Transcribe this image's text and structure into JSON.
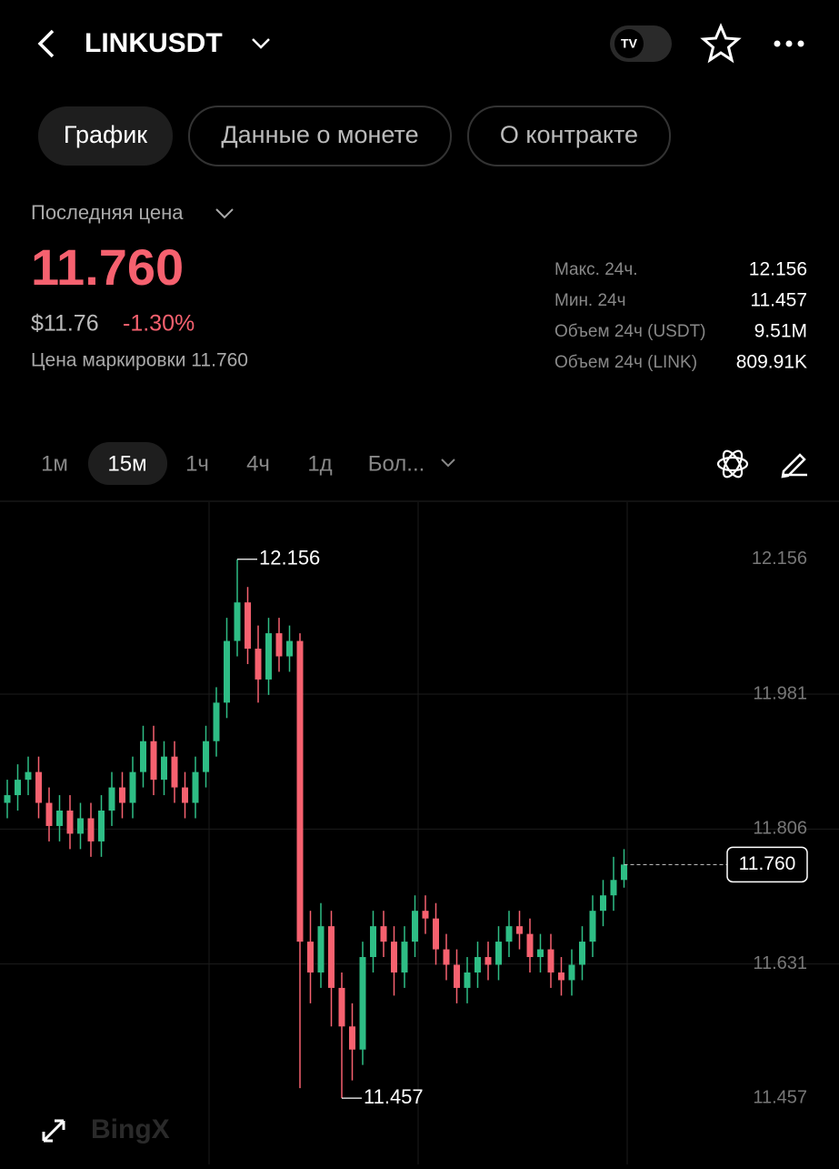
{
  "header": {
    "symbol": "LINKUSDT"
  },
  "tabs": [
    "График",
    "Данные о монете",
    "О контракте"
  ],
  "price": {
    "label": "Последняя цена",
    "last": "11.760",
    "usd": "$11.76",
    "change": "-1.30%",
    "mark": "Цена маркировки 11.760"
  },
  "stats": [
    {
      "label": "Макс. 24ч.",
      "value": "12.156"
    },
    {
      "label": "Мин. 24ч",
      "value": "11.457"
    },
    {
      "label": "Объем 24ч (USDT)",
      "value": "9.51M"
    },
    {
      "label": "Объем 24ч (LINK)",
      "value": "809.91K"
    }
  ],
  "intervals": [
    "1м",
    "15м",
    "1ч",
    "4ч",
    "1д",
    "Бол..."
  ],
  "watermark": "BingX",
  "chart_data": {
    "type": "candlestick",
    "up_color": "#2ebd85",
    "down_color": "#f6616f",
    "grid": true,
    "ylim": [
      11.371,
      12.23
    ],
    "yticks": [
      12.156,
      11.981,
      11.806,
      11.631,
      11.457
    ],
    "open": [
      11.84,
      11.85,
      11.87,
      11.88,
      11.84,
      11.81,
      11.83,
      11.8,
      11.82,
      11.79,
      11.83,
      11.86,
      11.84,
      11.88,
      11.92,
      11.87,
      11.9,
      11.86,
      11.84,
      11.88,
      11.92,
      11.97,
      12.05,
      12.1,
      12.04,
      12.0,
      12.06,
      12.03,
      12.05,
      11.66,
      11.62,
      11.68,
      11.6,
      11.55,
      11.52,
      11.64,
      11.68,
      11.66,
      11.62,
      11.66,
      11.7,
      11.69,
      11.65,
      11.63,
      11.6,
      11.62,
      11.64,
      11.63,
      11.66,
      11.68,
      11.67,
      11.64,
      11.65,
      11.62,
      11.61,
      11.63,
      11.66,
      11.7,
      11.72,
      11.74
    ],
    "high": [
      11.87,
      11.89,
      11.9,
      11.9,
      11.86,
      11.85,
      11.85,
      11.84,
      11.84,
      11.85,
      11.88,
      11.88,
      11.9,
      11.94,
      11.94,
      11.92,
      11.92,
      11.88,
      11.9,
      11.94,
      11.99,
      12.08,
      12.156,
      12.12,
      12.07,
      12.08,
      12.08,
      12.07,
      12.06,
      11.7,
      11.71,
      11.7,
      11.62,
      11.58,
      11.66,
      11.7,
      11.7,
      11.68,
      11.68,
      11.72,
      11.72,
      11.71,
      11.67,
      11.65,
      11.64,
      11.66,
      11.66,
      11.68,
      11.7,
      11.7,
      11.69,
      11.67,
      11.67,
      11.64,
      11.65,
      11.68,
      11.72,
      11.74,
      11.77,
      11.78
    ],
    "low": [
      11.82,
      11.83,
      11.85,
      11.82,
      11.79,
      11.79,
      11.78,
      11.78,
      11.77,
      11.77,
      11.81,
      11.82,
      11.82,
      11.86,
      11.85,
      11.85,
      11.84,
      11.82,
      11.82,
      11.86,
      11.9,
      11.95,
      12.03,
      12.02,
      11.97,
      11.98,
      12.01,
      12.01,
      11.47,
      11.58,
      11.6,
      11.55,
      11.457,
      11.48,
      11.5,
      11.62,
      11.64,
      11.59,
      11.6,
      11.64,
      11.67,
      11.63,
      11.61,
      11.58,
      11.58,
      11.6,
      11.61,
      11.61,
      11.64,
      11.65,
      11.62,
      11.62,
      11.6,
      11.59,
      11.59,
      11.61,
      11.64,
      11.68,
      11.7,
      11.73
    ],
    "close": [
      11.85,
      11.87,
      11.88,
      11.84,
      11.81,
      11.83,
      11.8,
      11.82,
      11.79,
      11.83,
      11.86,
      11.84,
      11.88,
      11.92,
      11.87,
      11.9,
      11.86,
      11.84,
      11.88,
      11.92,
      11.97,
      12.05,
      12.1,
      12.04,
      12.0,
      12.06,
      12.03,
      12.05,
      11.66,
      11.62,
      11.68,
      11.6,
      11.55,
      11.52,
      11.64,
      11.68,
      11.66,
      11.62,
      11.66,
      11.7,
      11.69,
      11.65,
      11.63,
      11.6,
      11.62,
      11.64,
      11.63,
      11.66,
      11.68,
      11.67,
      11.64,
      11.65,
      11.62,
      11.61,
      11.63,
      11.66,
      11.7,
      11.72,
      11.74,
      11.76
    ],
    "max_annotation": 12.156,
    "min_annotation": 11.457,
    "current_price": {
      "value": 11.76,
      "label": "11.760"
    }
  }
}
